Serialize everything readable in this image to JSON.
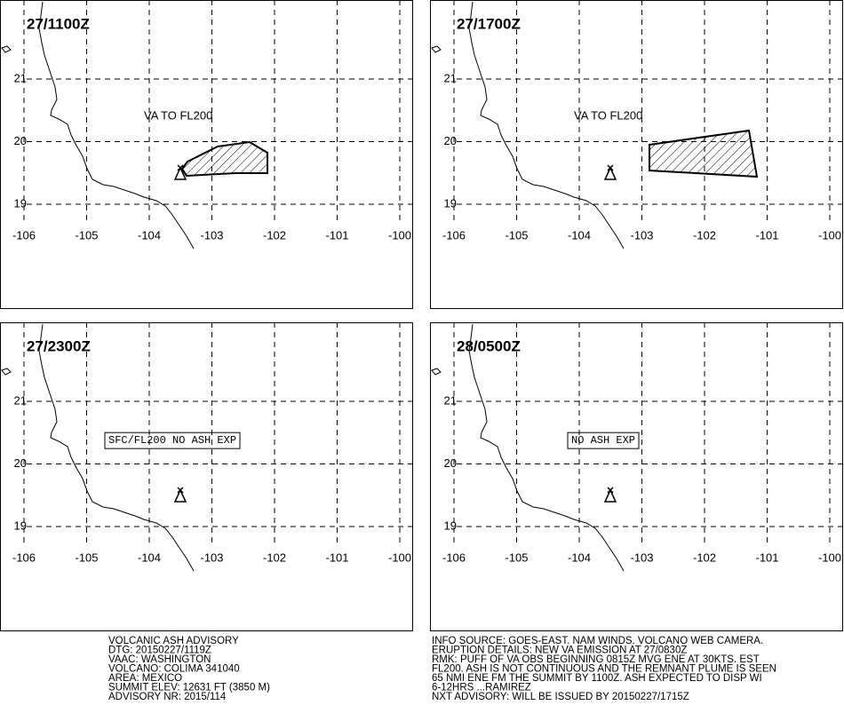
{
  "grid": {
    "lat": [
      21,
      20,
      19
    ],
    "lon": [
      -106,
      -105,
      -104,
      -103,
      -102,
      -101,
      -100
    ]
  },
  "panels": [
    {
      "time": "27/1100Z",
      "annotation": "VA TO FL200"
    },
    {
      "time": "27/1700Z",
      "annotation": "VA TO FL200"
    },
    {
      "time": "27/2300Z",
      "annotation": "SFC/FL200 NO ASH EXP"
    },
    {
      "time": "28/0500Z",
      "annotation": "NO ASH EXP"
    }
  ],
  "footer": {
    "left": [
      "VOLCANIC ASH ADVISORY",
      "DTG: 20150227/1119Z",
      "VAAC: WASHINGTON",
      "VOLCANO: COLIMA 341040",
      "AREA: MEXICO",
      "SUMMIT ELEV: 12631 FT (3850 M)",
      "ADVISORY NR: 2015/114"
    ],
    "right": [
      "INFO SOURCE: GOES-EAST. NAM WINDS. VOLCANO WEB CAMERA.",
      "ERUPTION DETAILS: NEW VA EMISSION AT 27/0830Z",
      "RMK: PUFF OF VA OBS BEGINNING 0815Z MVG ENE AT 30KTS. EST",
      "FL200. ASH IS NOT CONTINUOUS AND THE REMNANT PLUME IS SEEN",
      "65 NMI ENE FM THE SUMMIT BY 1100Z. ASH EXPECTED TO DISP WI",
      "6-12HRS ...RAMIREZ",
      "NXT ADVISORY: WILL BE ISSUED BY 20150227/1715Z"
    ]
  }
}
